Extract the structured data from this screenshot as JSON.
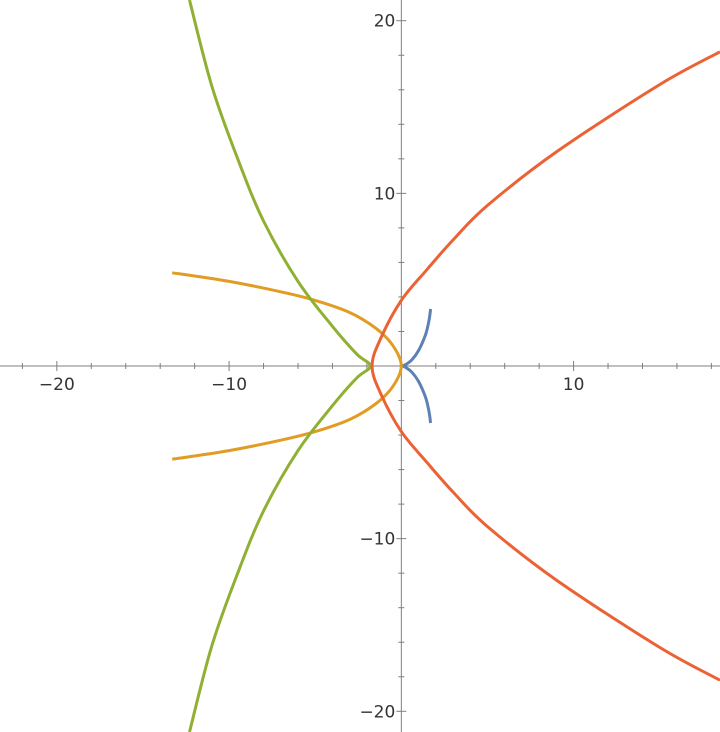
{
  "chart_data": {
    "type": "line",
    "title": "",
    "xlabel": "",
    "ylabel": "",
    "xlim": [
      -23.3,
      18.5
    ],
    "ylim": [
      -21.2,
      21.2
    ],
    "grid": false,
    "x_ticks": [
      {
        "value": -20,
        "label": "−20"
      },
      {
        "value": -10,
        "label": "−10"
      },
      {
        "value": 10,
        "label": "10"
      }
    ],
    "y_ticks": [
      {
        "value": 20,
        "label": "20"
      },
      {
        "value": 10,
        "label": "10"
      },
      {
        "value": -10,
        "label": "−10"
      },
      {
        "value": -20,
        "label": "−20"
      }
    ],
    "series": [
      {
        "color": "#5E81B5",
        "points": [
          [
            1.7,
            3.3
          ],
          [
            1.6,
            2.6
          ],
          [
            1.4,
            1.8
          ],
          [
            1.0,
            0.9
          ],
          [
            0.6,
            0.35
          ],
          [
            0.2,
            0.05
          ],
          [
            0,
            0
          ],
          [
            0.2,
            -0.05
          ],
          [
            0.6,
            -0.35
          ],
          [
            1.0,
            -0.9
          ],
          [
            1.4,
            -1.8
          ],
          [
            1.6,
            -2.6
          ],
          [
            1.7,
            -3.3
          ]
        ]
      },
      {
        "color": "#E19C24",
        "points": [
          [
            -13.3,
            5.4
          ],
          [
            -10,
            4.9
          ],
          [
            -7,
            4.3
          ],
          [
            -5,
            3.8
          ],
          [
            -3,
            3.1
          ],
          [
            -1.5,
            2.2
          ],
          [
            -0.5,
            1.2
          ],
          [
            0,
            0
          ],
          [
            -0.5,
            -1.2
          ],
          [
            -1.5,
            -2.2
          ],
          [
            -3,
            -3.1
          ],
          [
            -5,
            -3.8
          ],
          [
            -7,
            -4.3
          ],
          [
            -10,
            -4.9
          ],
          [
            -13.3,
            -5.4
          ]
        ]
      },
      {
        "color": "#8FB032",
        "points": [
          [
            -12.3,
            21.2
          ],
          [
            -11,
            16.2
          ],
          [
            -9.5,
            12.0
          ],
          [
            -8,
            8.4
          ],
          [
            -6,
            4.9
          ],
          [
            -4,
            2.3
          ],
          [
            -2.6,
            0.7
          ],
          [
            -1.8,
            0
          ],
          [
            -2.6,
            -0.7
          ],
          [
            -4,
            -2.3
          ],
          [
            -6,
            -4.9
          ],
          [
            -8,
            -8.4
          ],
          [
            -9.5,
            -12.0
          ],
          [
            -11,
            -16.2
          ],
          [
            -12.3,
            -21.2
          ]
        ]
      },
      {
        "color": "#EB6235",
        "points": [
          [
            18.5,
            18.2
          ],
          [
            15,
            16.3
          ],
          [
            9,
            12.4
          ],
          [
            5,
            9.3
          ],
          [
            3,
            7.3
          ],
          [
            1.5,
            5.6
          ],
          [
            0,
            3.8
          ],
          [
            -1.2,
            1.6
          ],
          [
            -1.7,
            0
          ],
          [
            -1.2,
            -1.6
          ],
          [
            0,
            -3.8
          ],
          [
            1.5,
            -5.6
          ],
          [
            3,
            -7.3
          ],
          [
            5,
            -9.3
          ],
          [
            9,
            -12.4
          ],
          [
            15,
            -16.3
          ],
          [
            18.5,
            -18.2
          ]
        ]
      }
    ]
  }
}
